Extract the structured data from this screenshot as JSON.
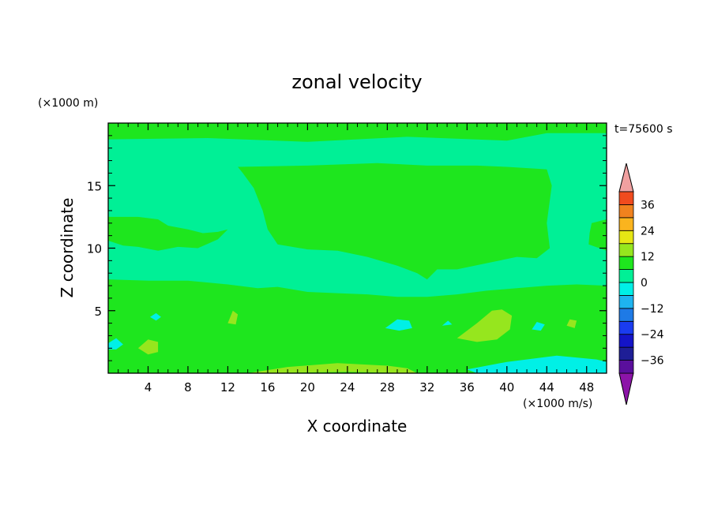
{
  "chart_data": {
    "type": "heatmap",
    "title": "zonal velocity",
    "xlabel": "X coordinate",
    "ylabel": "Z coordinate",
    "x_unit_label": "(×1000 m/s)",
    "y_unit_label": "(×1000 m)",
    "time_label": "t=75600 s",
    "xlim": [
      0,
      50
    ],
    "ylim": [
      0,
      20
    ],
    "x_ticks": [
      4,
      8,
      12,
      16,
      20,
      24,
      28,
      32,
      36,
      40,
      44,
      48
    ],
    "y_ticks": [
      5,
      10,
      15
    ],
    "colorbar": {
      "levels": [
        -42,
        -36,
        -30,
        -24,
        -18,
        -12,
        -6,
        0,
        6,
        12,
        18,
        24,
        30,
        36,
        42
      ],
      "colors": [
        "#5a0f9c",
        "#1e1e96",
        "#1414c8",
        "#1a3cf0",
        "#1e7ae6",
        "#1eb4f0",
        "#00f0e6",
        "#00f096",
        "#1ee61e",
        "#96e61e",
        "#e6e614",
        "#fab41e",
        "#f0821e",
        "#f04b1e",
        "#e61414"
      ],
      "under_color": "#8c14a8",
      "over_color": "#f0a0a0",
      "tick_labels": [
        "36",
        "24",
        "12",
        "0",
        "−12",
        "−24",
        "−36"
      ],
      "tick_values": [
        36,
        24,
        12,
        0,
        -12,
        -24,
        -36
      ]
    },
    "background_level_color": "#00f096",
    "regions": [
      {
        "level": 0,
        "color": "#1ee61e",
        "points": [
          [
            0,
            20
          ],
          [
            50,
            20
          ],
          [
            50,
            19.2
          ],
          [
            44,
            19.2
          ],
          [
            40,
            18.6
          ],
          [
            30,
            18.9
          ],
          [
            20,
            18.5
          ],
          [
            10,
            18.8
          ],
          [
            0,
            18.7
          ]
        ]
      },
      {
        "level": 0,
        "color": "#1ee61e",
        "points": [
          [
            13,
            16.5
          ],
          [
            20,
            16.6
          ],
          [
            27,
            16.8
          ],
          [
            32,
            16.6
          ],
          [
            37,
            16.6
          ],
          [
            40,
            16.5
          ],
          [
            44,
            16.3
          ],
          [
            44.5,
            15
          ],
          [
            44,
            12
          ],
          [
            44.3,
            10
          ],
          [
            43,
            9.2
          ],
          [
            41,
            9.3
          ],
          [
            38,
            8.8
          ],
          [
            35,
            8.3
          ],
          [
            33,
            8.3
          ],
          [
            32,
            7.5
          ],
          [
            31,
            8
          ],
          [
            29,
            8.6
          ],
          [
            26,
            9.3
          ],
          [
            23,
            9.8
          ],
          [
            20,
            9.9
          ],
          [
            17,
            10.3
          ],
          [
            16,
            11.5
          ],
          [
            15.5,
            13
          ],
          [
            14.6,
            14.8
          ],
          [
            13.5,
            16
          ]
        ]
      },
      {
        "level": 0,
        "color": "#1ee61e",
        "points": [
          [
            0,
            12.5
          ],
          [
            3,
            12.5
          ],
          [
            5,
            12.3
          ],
          [
            6,
            11.8
          ],
          [
            8,
            11.5
          ],
          [
            9.5,
            11.2
          ],
          [
            11,
            11.3
          ],
          [
            12,
            11.5
          ],
          [
            11,
            10.7
          ],
          [
            9,
            10
          ],
          [
            7,
            10.1
          ],
          [
            5,
            9.8
          ],
          [
            3,
            10.1
          ],
          [
            1.5,
            10.2
          ],
          [
            0,
            10.6
          ]
        ]
      },
      {
        "level": 0,
        "color": "#1ee61e",
        "points": [
          [
            48.5,
            12
          ],
          [
            50,
            12.3
          ],
          [
            50,
            9.8
          ],
          [
            48.2,
            10.3
          ],
          [
            48.3,
            11.2
          ]
        ]
      },
      {
        "level": 0,
        "color": "#1ee61e",
        "points": [
          [
            0,
            7.5
          ],
          [
            4,
            7.4
          ],
          [
            8,
            7.4
          ],
          [
            12,
            7.1
          ],
          [
            15,
            6.8
          ],
          [
            17,
            6.9
          ],
          [
            20,
            6.5
          ],
          [
            23,
            6.4
          ],
          [
            26,
            6.3
          ],
          [
            29,
            6.1
          ],
          [
            32,
            6.1
          ],
          [
            35,
            6.3
          ],
          [
            38,
            6.6
          ],
          [
            41,
            6.8
          ],
          [
            44,
            7.0
          ],
          [
            47,
            7.1
          ],
          [
            50,
            7.0
          ],
          [
            50,
            0
          ],
          [
            0,
            0
          ]
        ]
      },
      {
        "level": 6,
        "color": "#96e61e",
        "points": [
          [
            35,
            2.8
          ],
          [
            37,
            4.0
          ],
          [
            38.5,
            5.0
          ],
          [
            39.5,
            5.1
          ],
          [
            40.5,
            4.6
          ],
          [
            40.3,
            3.5
          ],
          [
            39,
            2.7
          ],
          [
            37,
            2.5
          ]
        ]
      },
      {
        "level": 6,
        "color": "#96e61e",
        "points": [
          [
            3,
            2
          ],
          [
            4,
            2.7
          ],
          [
            5,
            2.5
          ],
          [
            5,
            1.7
          ],
          [
            4,
            1.5
          ]
        ]
      },
      {
        "level": 6,
        "color": "#96e61e",
        "points": [
          [
            12,
            4
          ],
          [
            12.5,
            5
          ],
          [
            13,
            4.7
          ],
          [
            12.8,
            3.9
          ]
        ]
      },
      {
        "level": 6,
        "color": "#96e61e",
        "points": [
          [
            46,
            3.8
          ],
          [
            46.3,
            4.3
          ],
          [
            47,
            4.2
          ],
          [
            46.8,
            3.6
          ]
        ]
      },
      {
        "level": 6,
        "color": "#96e61e",
        "points": [
          [
            14,
            0
          ],
          [
            18,
            0.5
          ],
          [
            23,
            0.8
          ],
          [
            28,
            0.6
          ],
          [
            30,
            0.4
          ],
          [
            31,
            0
          ],
          [
            24,
            0.1
          ]
        ]
      },
      {
        "level": -6,
        "color": "#00f0e6",
        "points": [
          [
            36,
            0.3
          ],
          [
            40,
            0.9
          ],
          [
            45,
            1.4
          ],
          [
            49,
            1.1
          ],
          [
            50,
            0.9
          ],
          [
            50,
            0
          ],
          [
            37,
            0
          ]
        ]
      },
      {
        "level": -6,
        "color": "#00f0e6",
        "points": [
          [
            27.8,
            3.6
          ],
          [
            29,
            4.3
          ],
          [
            30.2,
            4.2
          ],
          [
            30.5,
            3.6
          ],
          [
            29.2,
            3.4
          ]
        ]
      },
      {
        "level": -6,
        "color": "#00f0e6",
        "points": [
          [
            33.5,
            3.8
          ],
          [
            34.1,
            4.2
          ],
          [
            34.5,
            3.9
          ]
        ]
      },
      {
        "level": -6,
        "color": "#00f0e6",
        "points": [
          [
            0,
            2.4
          ],
          [
            0.8,
            2.8
          ],
          [
            1.5,
            2.3
          ],
          [
            0.8,
            1.9
          ],
          [
            0,
            1.9
          ]
        ]
      },
      {
        "level": -6,
        "color": "#00f0e6",
        "points": [
          [
            4.2,
            4.5
          ],
          [
            4.8,
            4.8
          ],
          [
            5.3,
            4.5
          ],
          [
            4.8,
            4.2
          ]
        ]
      },
      {
        "level": -6,
        "color": "#00f0e6",
        "points": [
          [
            42.5,
            3.5
          ],
          [
            43,
            4.1
          ],
          [
            43.8,
            3.9
          ],
          [
            43.4,
            3.4
          ]
        ]
      }
    ]
  }
}
